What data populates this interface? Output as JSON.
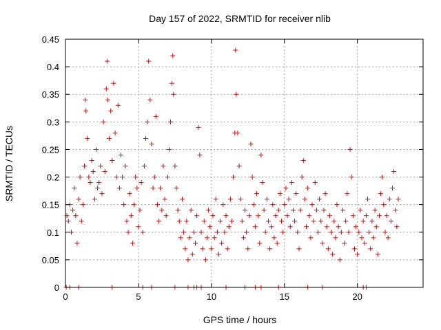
{
  "chart_data": {
    "type": "scatter",
    "title": "Day 157 of 2022, SRMTID for receiver nlib",
    "xlabel": "GPS time / hours",
    "ylabel": "SRMTID / TECUs",
    "xlim": [
      0,
      24.5
    ],
    "ylim": [
      0,
      0.45
    ],
    "xticks": [
      0,
      5,
      10,
      15,
      20
    ],
    "yticks": [
      0,
      0.05,
      0.1,
      0.15,
      0.2,
      0.25,
      0.3,
      0.35,
      0.4,
      0.45
    ],
    "ytick_labels": [
      "0",
      "0.05",
      "0.1",
      "0.15",
      "0.2",
      "0.25",
      "0.3",
      "0.35",
      "0.4",
      "0.45"
    ],
    "grid": true,
    "marker": "plus",
    "color": "#e00000",
    "series": [
      {
        "name": "",
        "points": [
          [
            0.1,
            0.13
          ],
          [
            0.2,
            0.12
          ],
          [
            0.3,
            0.15
          ],
          [
            0.4,
            0.1
          ],
          [
            0.5,
            0.14
          ],
          [
            0.6,
            0.18
          ],
          [
            0.7,
            0.13
          ],
          [
            0.8,
            0.08
          ],
          [
            0.9,
            0.16
          ],
          [
            1.0,
            0.2
          ],
          [
            1.1,
            0.12
          ],
          [
            1.2,
            0.15
          ],
          [
            1.3,
            0.22
          ],
          [
            1.35,
            0.34
          ],
          [
            1.4,
            0.32
          ],
          [
            1.5,
            0.27
          ],
          [
            1.6,
            0.2
          ],
          [
            1.7,
            0.19
          ],
          [
            1.8,
            0.23
          ],
          [
            1.9,
            0.21
          ],
          [
            2.0,
            0.16
          ],
          [
            2.1,
            0.25
          ],
          [
            2.2,
            0.18
          ],
          [
            2.3,
            0.19
          ],
          [
            2.4,
            0.22
          ],
          [
            2.5,
            0.17
          ],
          [
            2.6,
            0.3
          ],
          [
            2.7,
            0.21
          ],
          [
            2.8,
            0.36
          ],
          [
            2.85,
            0.41
          ],
          [
            2.9,
            0.34
          ],
          [
            3.0,
            0.27
          ],
          [
            3.1,
            0.32
          ],
          [
            3.2,
            0.23
          ],
          [
            3.3,
            0.37
          ],
          [
            3.4,
            0.28
          ],
          [
            3.5,
            0.2
          ],
          [
            3.6,
            0.33
          ],
          [
            3.7,
            0.18
          ],
          [
            3.8,
            0.24
          ],
          [
            3.9,
            0.2
          ],
          [
            4.0,
            0.15
          ],
          [
            4.1,
            0.22
          ],
          [
            4.2,
            0.12
          ],
          [
            4.3,
            0.1
          ],
          [
            4.4,
            0.17
          ],
          [
            4.5,
            0.13
          ],
          [
            4.6,
            0.08
          ],
          [
            4.7,
            0.15
          ],
          [
            4.8,
            0.2
          ],
          [
            4.9,
            0.18
          ],
          [
            5.0,
            0.11
          ],
          [
            5.1,
            0.14
          ],
          [
            5.2,
            0.19
          ],
          [
            5.3,
            0.1
          ],
          [
            5.4,
            0.22
          ],
          [
            5.5,
            0.27
          ],
          [
            5.6,
            0.3
          ],
          [
            5.7,
            0.41
          ],
          [
            5.8,
            0.34
          ],
          [
            5.9,
            0.26
          ],
          [
            6.0,
            0.18
          ],
          [
            6.1,
            0.2
          ],
          [
            6.2,
            0.31
          ],
          [
            6.3,
            0.15
          ],
          [
            6.4,
            0.12
          ],
          [
            6.5,
            0.18
          ],
          [
            6.6,
            0.14
          ],
          [
            6.7,
            0.22
          ],
          [
            6.8,
            0.16
          ],
          [
            6.9,
            0.13
          ],
          [
            7.0,
            0.2
          ],
          [
            7.1,
            0.25
          ],
          [
            7.2,
            0.3
          ],
          [
            7.3,
            0.37
          ],
          [
            7.35,
            0.42
          ],
          [
            7.4,
            0.35
          ],
          [
            7.5,
            0.22
          ],
          [
            7.6,
            0.18
          ],
          [
            7.7,
            0.14
          ],
          [
            7.8,
            0.12
          ],
          [
            7.9,
            0.09
          ],
          [
            8.0,
            0.16
          ],
          [
            8.1,
            0.1
          ],
          [
            8.2,
            0.07
          ],
          [
            8.3,
            0.12
          ],
          [
            8.4,
            0.05
          ],
          [
            8.5,
            0.09
          ],
          [
            8.6,
            0.14
          ],
          [
            8.7,
            0.06
          ],
          [
            8.8,
            0.1
          ],
          [
            8.9,
            0.08
          ],
          [
            9.0,
            0.13
          ],
          [
            9.1,
            0.29
          ],
          [
            9.2,
            0.24
          ],
          [
            9.3,
            0.1
          ],
          [
            9.4,
            0.07
          ],
          [
            9.5,
            0.12
          ],
          [
            9.6,
            0.05
          ],
          [
            9.7,
            0.09
          ],
          [
            9.8,
            0.14
          ],
          [
            9.9,
            0.11
          ],
          [
            10.0,
            0.07
          ],
          [
            10.1,
            0.13
          ],
          [
            10.2,
            0.09
          ],
          [
            10.3,
            0.16
          ],
          [
            10.4,
            0.1
          ],
          [
            10.5,
            0.06
          ],
          [
            10.6,
            0.12
          ],
          [
            10.7,
            0.08
          ],
          [
            10.8,
            0.15
          ],
          [
            10.9,
            0.1
          ],
          [
            11.0,
            0.13
          ],
          [
            11.1,
            0.07
          ],
          [
            11.2,
            0.11
          ],
          [
            11.3,
            0.16
          ],
          [
            11.4,
            0.12
          ],
          [
            11.5,
            0.2
          ],
          [
            11.6,
            0.28
          ],
          [
            11.65,
            0.43
          ],
          [
            11.7,
            0.35
          ],
          [
            11.8,
            0.28
          ],
          [
            11.9,
            0.22
          ],
          [
            12.0,
            0.16
          ],
          [
            12.1,
            0.12
          ],
          [
            12.2,
            0.09
          ],
          [
            12.3,
            0.14
          ],
          [
            12.4,
            0.1
          ],
          [
            12.5,
            0.07
          ],
          [
            12.6,
            0.13
          ],
          [
            12.7,
            0.26
          ],
          [
            12.8,
            0.2
          ],
          [
            12.9,
            0.15
          ],
          [
            13.0,
            0.11
          ],
          [
            13.1,
            0.17
          ],
          [
            13.2,
            0.13
          ],
          [
            13.3,
            0.08
          ],
          [
            13.4,
            0.24
          ],
          [
            13.5,
            0.19
          ],
          [
            13.6,
            0.14
          ],
          [
            13.7,
            0.1
          ],
          [
            13.8,
            0.16
          ],
          [
            13.9,
            0.12
          ],
          [
            14.0,
            0.07
          ],
          [
            14.1,
            0.11
          ],
          [
            14.2,
            0.15
          ],
          [
            14.3,
            0.09
          ],
          [
            14.4,
            0.13
          ],
          [
            14.5,
            0.08
          ],
          [
            14.6,
            0.14
          ],
          [
            14.7,
            0.17
          ],
          [
            14.8,
            0.12
          ],
          [
            14.9,
            0.1
          ],
          [
            15.0,
            0.15
          ],
          [
            15.1,
            0.18
          ],
          [
            15.2,
            0.13
          ],
          [
            15.3,
            0.16
          ],
          [
            15.4,
            0.11
          ],
          [
            15.5,
            0.19
          ],
          [
            15.6,
            0.14
          ],
          [
            15.7,
            0.12
          ],
          [
            15.8,
            0.17
          ],
          [
            15.9,
            0.1
          ],
          [
            16.0,
            0.07
          ],
          [
            16.1,
            0.14
          ],
          [
            16.2,
            0.2
          ],
          [
            16.3,
            0.23
          ],
          [
            16.4,
            0.16
          ],
          [
            16.5,
            0.11
          ],
          [
            16.6,
            0.18
          ],
          [
            16.7,
            0.13
          ],
          [
            16.8,
            0.09
          ],
          [
            16.9,
            0.15
          ],
          [
            17.0,
            0.12
          ],
          [
            17.1,
            0.19
          ],
          [
            17.2,
            0.14
          ],
          [
            17.3,
            0.1
          ],
          [
            17.4,
            0.16
          ],
          [
            17.5,
            0.12
          ],
          [
            17.6,
            0.08
          ],
          [
            17.7,
            0.14
          ],
          [
            17.8,
            0.17
          ],
          [
            17.9,
            0.11
          ],
          [
            18.0,
            0.07
          ],
          [
            18.1,
            0.13
          ],
          [
            18.2,
            0.1
          ],
          [
            18.3,
            0.06
          ],
          [
            18.4,
            0.12
          ],
          [
            18.5,
            0.09
          ],
          [
            18.6,
            0.15
          ],
          [
            18.7,
            0.11
          ],
          [
            18.8,
            0.05
          ],
          [
            18.9,
            0.1
          ],
          [
            19.0,
            0.14
          ],
          [
            19.1,
            0.08
          ],
          [
            19.2,
            0.12
          ],
          [
            19.3,
            0.17
          ],
          [
            19.4,
            0.1
          ],
          [
            19.5,
            0.25
          ],
          [
            19.6,
            0.2
          ],
          [
            19.7,
            0.13
          ],
          [
            19.8,
            0.07
          ],
          [
            19.9,
            0.11
          ],
          [
            20.0,
            0.06
          ],
          [
            20.1,
            0.1
          ],
          [
            20.2,
            0.14
          ],
          [
            20.3,
            0.09
          ],
          [
            20.4,
            0.12
          ],
          [
            20.5,
            0.08
          ],
          [
            20.6,
            0.13
          ],
          [
            20.7,
            0.16
          ],
          [
            20.8,
            0.1
          ],
          [
            20.9,
            0.07
          ],
          [
            21.0,
            0.12
          ],
          [
            21.1,
            0.09
          ],
          [
            21.2,
            0.14
          ],
          [
            21.3,
            0.11
          ],
          [
            21.4,
            0.06
          ],
          [
            21.5,
            0.13
          ],
          [
            21.6,
            0.17
          ],
          [
            21.7,
            0.2
          ],
          [
            21.8,
            0.15
          ],
          [
            21.9,
            0.1
          ],
          [
            22.0,
            0.13
          ],
          [
            22.1,
            0.09
          ],
          [
            22.2,
            0.16
          ],
          [
            22.3,
            0.12
          ],
          [
            22.4,
            0.18
          ],
          [
            22.5,
            0.21
          ],
          [
            22.6,
            0.14
          ],
          [
            22.7,
            0.11
          ],
          [
            22.8,
            0.16
          ],
          [
            0.05,
            0
          ],
          [
            0.3,
            0
          ],
          [
            0.9,
            0
          ],
          [
            3.2,
            0
          ],
          [
            5.3,
            0
          ],
          [
            5.9,
            0
          ],
          [
            7.5,
            0
          ],
          [
            8.4,
            0
          ],
          [
            8.8,
            0
          ],
          [
            9.0,
            0
          ],
          [
            9.3,
            0
          ],
          [
            11.0,
            0
          ],
          [
            12.3,
            0
          ],
          [
            13.0,
            0
          ],
          [
            13.4,
            0
          ],
          [
            14.6,
            0
          ],
          [
            16.6,
            0
          ],
          [
            17.6,
            0
          ],
          [
            20.4,
            0
          ],
          [
            20.6,
            0
          ]
        ]
      }
    ]
  }
}
